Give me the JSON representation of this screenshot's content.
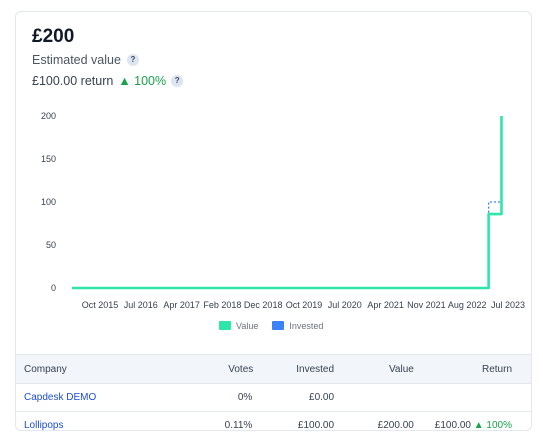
{
  "summary": {
    "total": "£200",
    "estimated_label": "Estimated value",
    "return_amount": "£100.00 return",
    "return_pct": "▲ 100%",
    "help_glyph": "?"
  },
  "colors": {
    "value": "#2ee6a8",
    "invested": "#3b82f6",
    "positive": "#16a34a",
    "link": "#1d4ed8"
  },
  "chart_data": {
    "type": "line",
    "x_ticks": [
      "Oct 2015",
      "Jul 2016",
      "Apr 2017",
      "Feb 2018",
      "Dec 2018",
      "Oct 2019",
      "Jul 2020",
      "Apr 2021",
      "Nov 2021",
      "Aug 2022",
      "Jul 2023"
    ],
    "y_ticks": [
      0,
      50,
      100,
      150,
      200
    ],
    "ylim": [
      0,
      200
    ],
    "legend": "bottom",
    "series": [
      {
        "name": "Value",
        "points": [
          [
            "2015-01",
            0
          ],
          [
            "2023-03",
            0
          ],
          [
            "2023-03",
            86
          ],
          [
            "2023-06",
            86
          ],
          [
            "2023-06",
            200
          ]
        ]
      },
      {
        "name": "Invested",
        "points": [
          [
            "2015-01",
            0
          ],
          [
            "2023-03",
            0
          ],
          [
            "2023-03",
            100
          ],
          [
            "2023-06",
            100
          ]
        ]
      }
    ]
  },
  "legend": {
    "value_label": "Value",
    "invested_label": "Invested"
  },
  "table": {
    "headers": [
      "Company",
      "Votes",
      "Invested",
      "Value",
      "Return"
    ],
    "rows": [
      {
        "company": "Capdesk DEMO",
        "votes": "0%",
        "invested": "£0.00",
        "value": "",
        "return": "",
        "return_pct": ""
      },
      {
        "company": "Lollipops",
        "votes": "0.11%",
        "invested": "£100.00",
        "value": "£200.00",
        "return": "£100.00",
        "return_pct": "▲ 100%"
      }
    ]
  }
}
